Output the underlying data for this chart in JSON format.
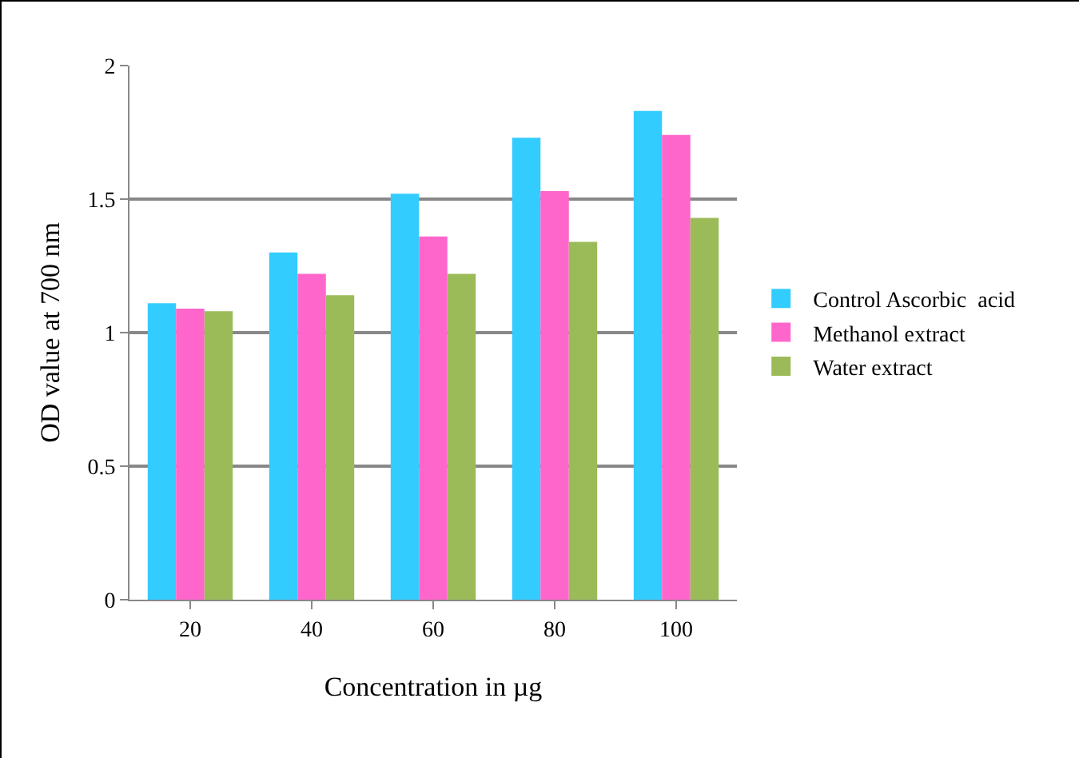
{
  "chart_data": {
    "type": "bar",
    "xlabel": "Concentration in µg",
    "ylabel": "OD value at 700 nm",
    "categories": [
      "20",
      "40",
      "60",
      "80",
      "100"
    ],
    "series": [
      {
        "name": "Control Ascorbic  acid",
        "color": "#33ccff",
        "values": [
          1.11,
          1.3,
          1.52,
          1.73,
          1.83
        ]
      },
      {
        "name": "Methanol extract",
        "color": "#ff66cc",
        "values": [
          1.09,
          1.22,
          1.36,
          1.53,
          1.74
        ]
      },
      {
        "name": "Water extract",
        "color": "#9bbb59",
        "values": [
          1.08,
          1.14,
          1.22,
          1.34,
          1.43
        ]
      }
    ],
    "ylim": [
      0,
      2
    ],
    "yticks": [
      0,
      0.5,
      1,
      1.5,
      2
    ],
    "grid": "y",
    "legend": "right"
  }
}
